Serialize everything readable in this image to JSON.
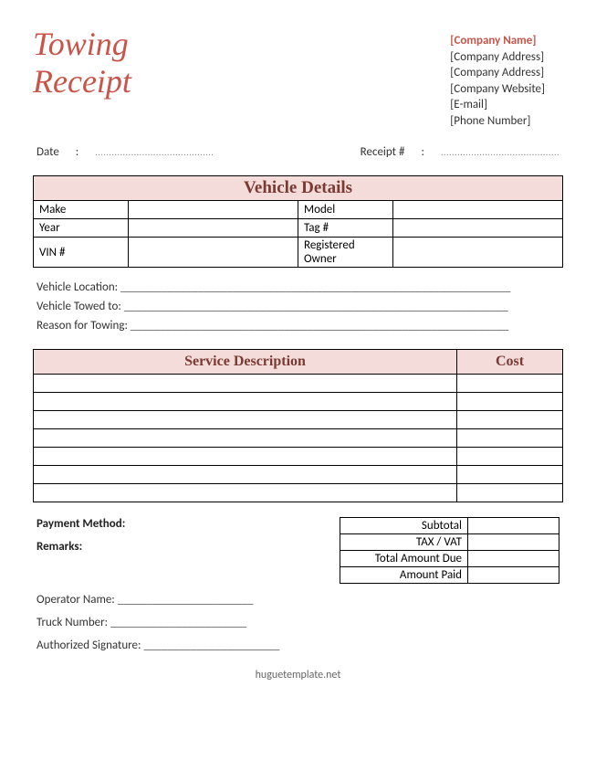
{
  "title_line1": "Towing",
  "title_line2": "Receipt",
  "colors": {
    "accent": "#c9544a",
    "header_bg": "#f3dcd9",
    "header_text": "#7a3a33",
    "border": "#000000",
    "text": "#333333",
    "background": "#ffffff"
  },
  "company": {
    "name": "[Company Name]",
    "address1": "[Company Address]",
    "address2": "[Company Address]",
    "website": "[Company Website]",
    "email": "[E-mail]",
    "phone": "[Phone Number]"
  },
  "meta": {
    "date_label": "Date",
    "date_sep": ":",
    "date_value": "...........................................",
    "receipt_label": "Receipt #",
    "receipt_sep": ":",
    "receipt_value": "..........................................."
  },
  "vehicle": {
    "title": "Vehicle Details",
    "rows": [
      {
        "l1": "Make",
        "v1": "",
        "l2": "Model",
        "v2": ""
      },
      {
        "l1": "Year",
        "v1": "",
        "l2": "Tag #",
        "v2": ""
      },
      {
        "l1": "VIN #",
        "v1": "",
        "l2": "Registered Owner",
        "v2": ""
      }
    ]
  },
  "lines": {
    "location_label": "Vehicle Location:",
    "location_fill": " __________________________________________________________________",
    "towed_label": "Vehicle Towed to:",
    "towed_fill": " _________________________________________________________________",
    "reason_label": "Reason for Towing:",
    "reason_fill": " ________________________________________________________________"
  },
  "service": {
    "desc_header": "Service Description",
    "cost_header": "Cost",
    "row_count": 7
  },
  "payment": {
    "method_label": "Payment Method:",
    "remarks_label": "Remarks:"
  },
  "totals": {
    "rows": [
      {
        "label": "Subtotal",
        "value": ""
      },
      {
        "label": "TAX / VAT",
        "value": ""
      },
      {
        "label": "Total Amount Due",
        "value": ""
      },
      {
        "label": "Amount Paid",
        "value": ""
      }
    ]
  },
  "signatures": {
    "operator_label": "Operator Name:",
    "operator_fill": " _______________________",
    "truck_label": "Truck Number:",
    "truck_fill": " _______________________",
    "auth_label": "Authorized Signature:",
    "auth_fill": " _______________________"
  },
  "footer": "huguetemplate.net"
}
